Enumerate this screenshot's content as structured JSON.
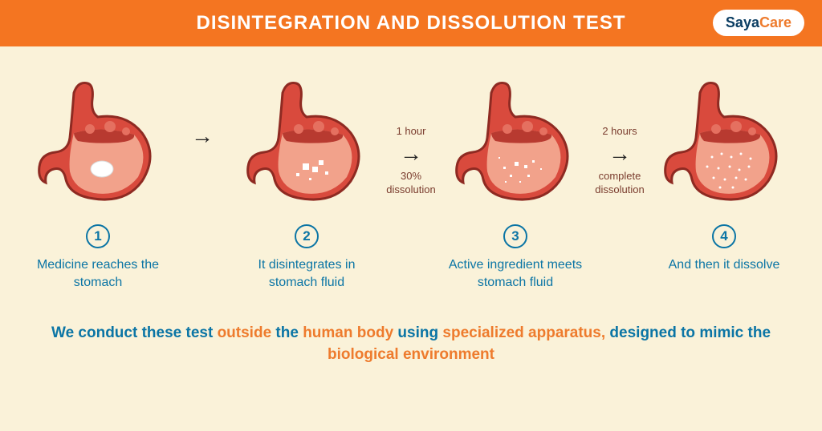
{
  "header": {
    "title": "DISINTEGRATION AND DISSOLUTION TEST",
    "bg_color": "#f47521",
    "title_color": "#ffffff",
    "title_fontsize": 24
  },
  "logo": {
    "part1": "Saya",
    "part2": "Care",
    "part1_color": "#0a3d62",
    "part2_color": "#ee7b2d",
    "bg_color": "#ffffff"
  },
  "page_bg": "#faf2d9",
  "stomach_style": {
    "outer_fill": "#d94a3d",
    "outer_stroke": "#8e2a22",
    "fluid_fill": "#f2a28b",
    "fluid_dark": "#b83a30",
    "bubble_fill": "#e57060"
  },
  "stages": [
    {
      "num": "1",
      "caption": "Medicine reaches the stomach",
      "particles": "tablet"
    },
    {
      "num": "2",
      "caption": "It disintegrates in stomach fluid",
      "particles": "chunks"
    },
    {
      "num": "3",
      "caption": "Active ingredient meets stomach fluid",
      "particles": "small"
    },
    {
      "num": "4",
      "caption": "And then it dissolve",
      "particles": "dots"
    }
  ],
  "arrows": [
    {
      "top": "",
      "bottom": ""
    },
    {
      "top": "1 hour",
      "bottom": "30% dissolution"
    },
    {
      "top": "2 hours",
      "bottom": "complete dissolution"
    }
  ],
  "step_circle": {
    "border_color": "#0b75a5",
    "text_color": "#0b75a5",
    "fontsize": 17
  },
  "caption_style": {
    "color": "#0b75a5",
    "fontsize": 16
  },
  "arrow_label_style": {
    "color": "#7a3c2e",
    "fontsize": 13
  },
  "footer": {
    "segments": [
      {
        "t": "We conduct these test ",
        "hl": false
      },
      {
        "t": "outside",
        "hl": true
      },
      {
        "t": " the ",
        "hl": false
      },
      {
        "t": "human body",
        "hl": true
      },
      {
        "t": " using ",
        "hl": false
      },
      {
        "t": "specialized apparatus,",
        "hl": true
      },
      {
        "t": " designed to mimic the ",
        "hl": false
      },
      {
        "t": "biological environment",
        "hl": true
      }
    ],
    "base_color": "#0b75a5",
    "highlight_color": "#ee7b2d",
    "fontsize": 19
  }
}
